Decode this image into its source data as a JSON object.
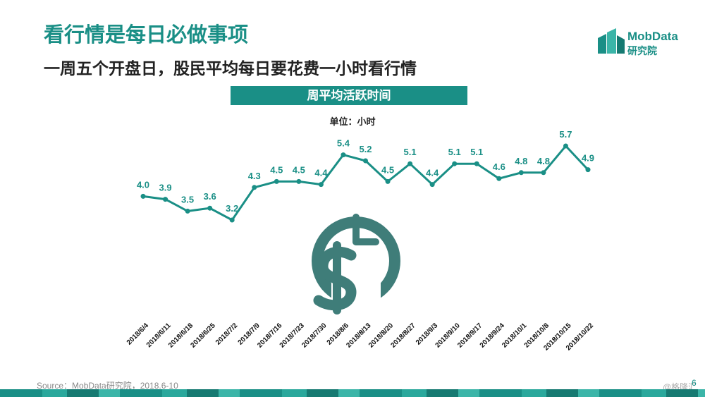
{
  "title": "看行情是每日必做事项",
  "subtitle": "一周五个开盘日，股民平均每日要花费一小时看行情",
  "logo": {
    "name": "MobData",
    "subname": "研究院"
  },
  "chart_title": "周平均活跃时间",
  "unit_label": "单位：小时",
  "source": "Source：MobData研究院，2018.6-10",
  "page_number": "6",
  "watermark": "@格隆汇",
  "colors": {
    "accent": "#1a8f86",
    "icon": "#3f7d79"
  },
  "chart_data": {
    "type": "line",
    "title": "周平均活跃时间",
    "ylabel": "单位：小时",
    "categories": [
      "2018/6/4",
      "2018/6/11",
      "2018/6/18",
      "2018/6/25",
      "2018/7/2",
      "2018/7/9",
      "2018/7/16",
      "2018/7/23",
      "2018/7/30",
      "2018/8/6",
      "2018/8/13",
      "2018/8/20",
      "2018/8/27",
      "2018/9/3",
      "2018/9/10",
      "2018/9/17",
      "2018/9/24",
      "2018/10/1",
      "2018/10/8",
      "2018/10/15",
      "2018/10/22"
    ],
    "values": [
      4.0,
      3.9,
      3.5,
      3.6,
      3.2,
      4.3,
      4.5,
      4.5,
      4.4,
      5.4,
      5.2,
      4.5,
      5.1,
      4.4,
      5.1,
      5.1,
      4.6,
      4.8,
      4.8,
      5.7,
      4.9
    ],
    "value_labels": [
      "4.0",
      "3.9",
      "3.5",
      "3.6",
      "3.2",
      "4.3",
      "4.5",
      "4.5",
      "4.4",
      "5.4",
      "5.2",
      "4.5",
      "5.1",
      "4.4",
      "5.1",
      "5.1",
      "4.6",
      "4.8",
      "4.8",
      "5.7",
      "4.9"
    ],
    "grid": false,
    "legend": "none"
  }
}
